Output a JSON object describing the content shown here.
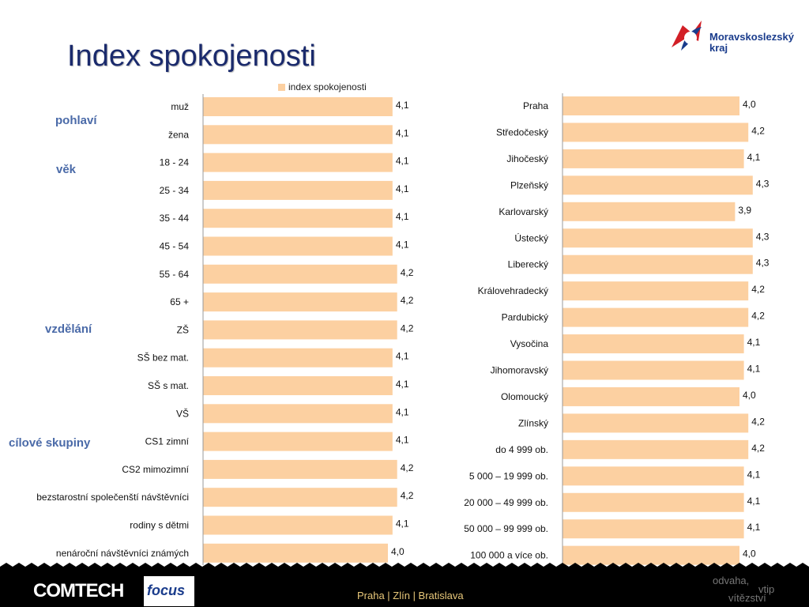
{
  "title": "Index spokojenosti",
  "logo": {
    "line1": "Moravskoslezský",
    "line2": "kraj"
  },
  "legend": "index spokojenosti",
  "groups": {
    "pohlavi": "pohlaví",
    "vek": "věk",
    "vzdelani": "vzdělání",
    "cilove": "cílové skupiny"
  },
  "footer": {
    "comtech": "COMTECH",
    "focus": "focus",
    "cities": "Praha | Zlín | Bratislava",
    "slogan1": "odvaha,",
    "slogan2": "vtip",
    "slogan3": "vítězství"
  },
  "colors": {
    "bar": "#fcd0a1",
    "title": "#1a2a6c",
    "group": "#4a6aa8"
  },
  "chart_data": [
    {
      "type": "bar",
      "orientation": "horizontal",
      "series": [
        {
          "name": "index spokojenosti"
        }
      ],
      "xlim": [
        0,
        5.0
      ],
      "categories": [
        "muž",
        "žena",
        "18 - 24",
        "25 - 34",
        "35 - 44",
        "45 - 54",
        "55 - 64",
        "65 +",
        "ZŠ",
        "SŠ bez mat.",
        "SŠ s mat.",
        "VŠ",
        "CS1 zimní",
        "CS2 mimozimní",
        "bezstarostní společenští návštěvníci",
        "rodiny s dětmi",
        "nenároční návštěvníci známých"
      ],
      "values": [
        4.1,
        4.1,
        4.1,
        4.1,
        4.1,
        4.1,
        4.2,
        4.2,
        4.2,
        4.1,
        4.1,
        4.1,
        4.1,
        4.2,
        4.2,
        4.1,
        4.0
      ],
      "labels": [
        "4,1",
        "4,1",
        "4,1",
        "4,1",
        "4,1",
        "4,1",
        "4,2",
        "4,2",
        "4,2",
        "4,1",
        "4,1",
        "4,1",
        "4,1",
        "4,2",
        "4,2",
        "4,1",
        "4,0"
      ]
    },
    {
      "type": "bar",
      "orientation": "horizontal",
      "xlim": [
        0,
        5.0
      ],
      "categories": [
        "Praha",
        "Středočeský",
        "Jihočeský",
        "Plzeňský",
        "Karlovarský",
        "Ústecký",
        "Liberecký",
        "Královehradecký",
        "Pardubický",
        "Vysočina",
        "Jihomoravský",
        "Olomoucký",
        "Zlínský",
        "do 4 999 ob.",
        "5 000 – 19 999 ob.",
        "20 000 – 49 999 ob.",
        "50 000 – 99 999 ob.",
        "100 000 a více ob."
      ],
      "values": [
        4.0,
        4.2,
        4.1,
        4.3,
        3.9,
        4.3,
        4.3,
        4.2,
        4.2,
        4.1,
        4.1,
        4.0,
        4.2,
        4.2,
        4.1,
        4.1,
        4.1,
        4.0
      ],
      "labels": [
        "4,0",
        "4,2",
        "4,1",
        "4,3",
        "3,9",
        "4,3",
        "4,3",
        "4,2",
        "4,2",
        "4,1",
        "4,1",
        "4,0",
        "4,2",
        "4,2",
        "4,1",
        "4,1",
        "4,1",
        "4,0"
      ]
    }
  ]
}
